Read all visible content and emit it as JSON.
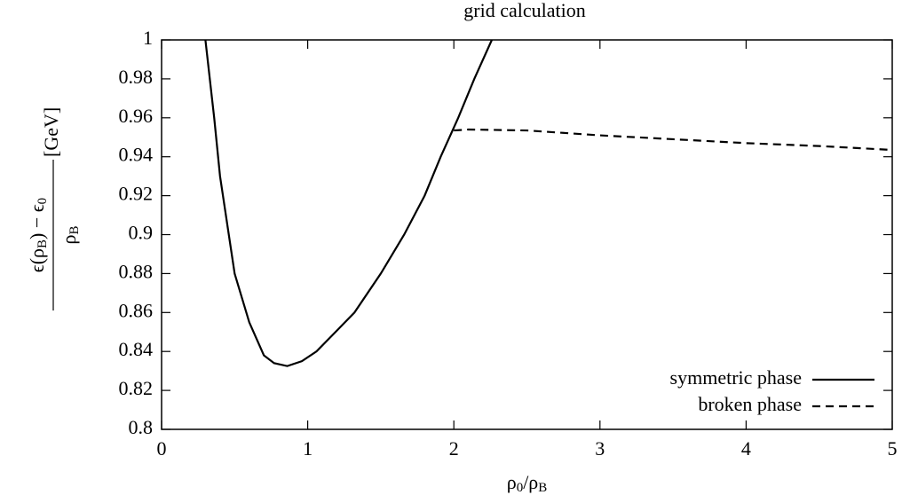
{
  "chart_data": {
    "type": "line",
    "title": "grid calculation",
    "xlabel": "ρ_0/ρ_B",
    "ylabel": {
      "numerator": "ϵ(ρ_B) − ϵ_0",
      "denominator": "ρ_B",
      "unit": "[GeV]"
    },
    "xlim": [
      0,
      5
    ],
    "xticks": [
      0,
      1,
      2,
      3,
      4,
      5
    ],
    "ylim": [
      0.8,
      1
    ],
    "yticks": [
      0.8,
      0.82,
      0.84,
      0.86,
      0.88,
      0.9,
      0.92,
      0.94,
      0.96,
      0.98,
      1
    ],
    "legend": "bottom-right",
    "series": [
      {
        "name": "symmetric phase",
        "color": "#000000",
        "dash": "solid",
        "x": [
          0.3,
          0.36,
          0.4,
          0.5,
          0.6,
          0.7,
          0.77,
          0.86,
          0.96,
          1.06,
          1.32,
          1.5,
          1.66,
          1.8,
          1.91,
          2.03,
          2.14,
          2.26
        ],
        "values": [
          1.0,
          0.96,
          0.93,
          0.88,
          0.855,
          0.838,
          0.834,
          0.8325,
          0.835,
          0.84,
          0.86,
          0.88,
          0.9,
          0.92,
          0.94,
          0.96,
          0.98,
          1.0
        ]
      },
      {
        "name": "broken phase",
        "color": "#000000",
        "dash": "dashed",
        "x": [
          2.0,
          2.1,
          2.5,
          3.0,
          3.5,
          4.0,
          4.5,
          5.0
        ],
        "values": [
          0.9535,
          0.954,
          0.9535,
          0.951,
          0.949,
          0.947,
          0.9455,
          0.9435
        ]
      }
    ]
  }
}
